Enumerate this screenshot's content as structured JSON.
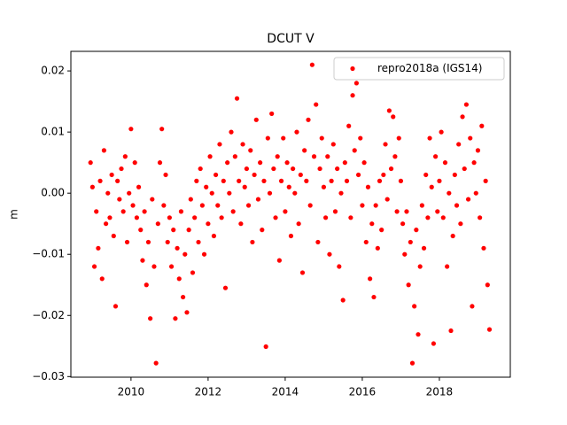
{
  "chart_data": {
    "type": "scatter",
    "title": "DCUT V",
    "y_label": "m",
    "xlim": [
      2008.44,
      2019.84
    ],
    "ylim": [
      -0.0301,
      0.0232
    ],
    "xticks": [
      2010,
      2012,
      2014,
      2016,
      2018
    ],
    "yticks": [
      {
        "value": -0.03,
        "label": "−0.03"
      },
      {
        "value": -0.02,
        "label": "−0.02"
      },
      {
        "value": -0.01,
        "label": "−0.01"
      },
      {
        "value": 0,
        "label": "0.00"
      },
      {
        "value": 0.01,
        "label": "0.01"
      },
      {
        "value": 0.02,
        "label": "0.02"
      }
    ],
    "legend_position": "upper right",
    "series": [
      {
        "name": "repro2018a (IGS14)",
        "color": "#ff0000",
        "x": [
          2008.95,
          2009.0,
          2009.05,
          2009.1,
          2009.15,
          2009.2,
          2009.25,
          2009.3,
          2009.35,
          2009.4,
          2009.45,
          2009.5,
          2009.55,
          2009.6,
          2009.65,
          2009.7,
          2009.75,
          2009.8,
          2009.85,
          2009.9,
          2009.95,
          2010.0,
          2010.05,
          2010.1,
          2010.15,
          2010.2,
          2010.25,
          2010.3,
          2010.35,
          2010.4,
          2010.45,
          2010.5,
          2010.55,
          2010.6,
          2010.65,
          2010.7,
          2010.75,
          2010.8,
          2010.85,
          2010.9,
          2010.95,
          2011.0,
          2011.05,
          2011.1,
          2011.15,
          2011.2,
          2011.25,
          2011.3,
          2011.35,
          2011.4,
          2011.45,
          2011.5,
          2011.55,
          2011.6,
          2011.65,
          2011.7,
          2011.75,
          2011.8,
          2011.85,
          2011.9,
          2011.95,
          2012.0,
          2012.05,
          2012.1,
          2012.15,
          2012.2,
          2012.25,
          2012.3,
          2012.35,
          2012.4,
          2012.45,
          2012.5,
          2012.55,
          2012.6,
          2012.65,
          2012.7,
          2012.75,
          2012.8,
          2012.85,
          2012.9,
          2012.95,
          2013.0,
          2013.05,
          2013.1,
          2013.15,
          2013.2,
          2013.25,
          2013.3,
          2013.35,
          2013.4,
          2013.45,
          2013.5,
          2013.55,
          2013.6,
          2013.65,
          2013.7,
          2013.75,
          2013.8,
          2013.85,
          2013.9,
          2013.95,
          2014.0,
          2014.05,
          2014.1,
          2014.15,
          2014.2,
          2014.25,
          2014.3,
          2014.35,
          2014.4,
          2014.45,
          2014.5,
          2014.55,
          2014.6,
          2014.65,
          2014.7,
          2014.75,
          2014.8,
          2014.85,
          2014.9,
          2014.95,
          2015.0,
          2015.05,
          2015.1,
          2015.15,
          2015.2,
          2015.25,
          2015.3,
          2015.35,
          2015.4,
          2015.45,
          2015.5,
          2015.55,
          2015.6,
          2015.65,
          2015.7,
          2015.75,
          2015.8,
          2015.85,
          2015.9,
          2015.95,
          2016.0,
          2016.05,
          2016.1,
          2016.15,
          2016.2,
          2016.25,
          2016.3,
          2016.35,
          2016.4,
          2016.45,
          2016.5,
          2016.55,
          2016.6,
          2016.65,
          2016.7,
          2016.75,
          2016.8,
          2016.85,
          2016.9,
          2016.95,
          2017.0,
          2017.05,
          2017.1,
          2017.15,
          2017.2,
          2017.25,
          2017.3,
          2017.35,
          2017.4,
          2017.45,
          2017.5,
          2017.55,
          2017.6,
          2017.65,
          2017.7,
          2017.75,
          2017.8,
          2017.85,
          2017.9,
          2017.95,
          2018.0,
          2018.05,
          2018.1,
          2018.15,
          2018.2,
          2018.25,
          2018.3,
          2018.35,
          2018.4,
          2018.45,
          2018.5,
          2018.55,
          2018.6,
          2018.65,
          2018.7,
          2018.75,
          2018.8,
          2018.85,
          2018.9,
          2018.95,
          2019.0,
          2019.05,
          2019.1,
          2019.15,
          2019.2,
          2019.25,
          2019.3
        ],
        "values": [
          0.005,
          0.001,
          -0.012,
          -0.003,
          -0.009,
          0.002,
          -0.014,
          0.007,
          -0.005,
          0.0,
          -0.004,
          0.003,
          -0.007,
          -0.0185,
          0.002,
          -0.001,
          0.004,
          -0.003,
          0.006,
          -0.008,
          0.0,
          0.0105,
          -0.002,
          0.005,
          -0.004,
          0.001,
          -0.006,
          -0.011,
          -0.003,
          -0.015,
          -0.008,
          -0.0205,
          -0.001,
          -0.012,
          -0.0278,
          -0.005,
          0.005,
          0.0105,
          -0.002,
          0.003,
          -0.008,
          -0.004,
          -0.012,
          -0.006,
          -0.0205,
          -0.009,
          -0.014,
          -0.003,
          -0.017,
          -0.01,
          -0.0195,
          -0.006,
          -0.001,
          -0.013,
          -0.004,
          0.002,
          -0.008,
          0.004,
          -0.002,
          -0.01,
          0.001,
          -0.005,
          0.006,
          0.0,
          -0.007,
          0.003,
          -0.002,
          0.008,
          -0.004,
          0.002,
          -0.0155,
          0.005,
          0.0,
          0.01,
          -0.003,
          0.006,
          0.0155,
          0.002,
          -0.005,
          0.008,
          0.001,
          0.004,
          -0.002,
          0.007,
          -0.008,
          0.003,
          0.012,
          -0.001,
          0.005,
          -0.006,
          0.002,
          -0.0251,
          0.009,
          0.0,
          0.013,
          0.004,
          -0.004,
          0.006,
          -0.011,
          0.002,
          0.009,
          -0.003,
          0.005,
          0.001,
          -0.007,
          0.004,
          0.0,
          0.01,
          -0.005,
          0.003,
          -0.013,
          0.007,
          0.002,
          0.012,
          -0.002,
          0.021,
          0.006,
          0.0145,
          -0.008,
          0.004,
          0.009,
          0.001,
          -0.004,
          0.006,
          -0.01,
          0.002,
          0.008,
          -0.003,
          0.004,
          -0.012,
          0.0,
          -0.0175,
          0.005,
          0.002,
          0.011,
          -0.004,
          0.016,
          0.007,
          0.018,
          0.003,
          0.009,
          -0.002,
          0.005,
          -0.008,
          0.001,
          -0.014,
          -0.005,
          -0.017,
          -0.002,
          -0.009,
          0.002,
          -0.006,
          0.003,
          0.008,
          -0.001,
          0.0135,
          0.004,
          0.0125,
          0.006,
          -0.003,
          0.009,
          0.002,
          -0.005,
          -0.01,
          -0.003,
          -0.015,
          -0.008,
          -0.0278,
          -0.0185,
          -0.006,
          -0.0231,
          -0.012,
          -0.002,
          -0.009,
          0.003,
          -0.004,
          0.009,
          0.001,
          -0.0246,
          0.006,
          -0.003,
          0.002,
          0.01,
          -0.004,
          0.005,
          -0.012,
          0.0,
          -0.0225,
          -0.007,
          0.003,
          -0.002,
          0.008,
          -0.005,
          0.0125,
          0.004,
          0.0145,
          -0.001,
          0.009,
          -0.0185,
          0.005,
          0.0,
          0.007,
          -0.004,
          0.011,
          -0.009,
          0.002,
          -0.015,
          -0.0223
        ]
      }
    ]
  }
}
